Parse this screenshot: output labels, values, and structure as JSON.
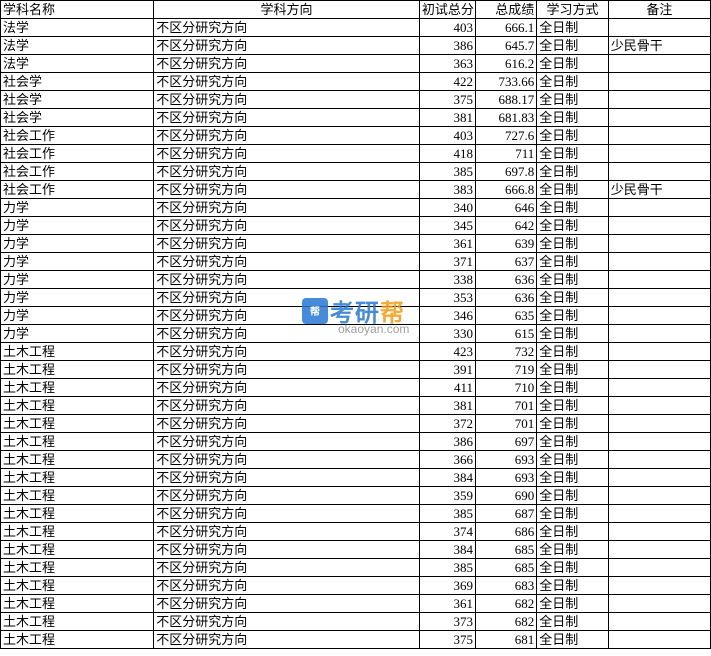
{
  "headers": {
    "subject": "学科名称",
    "direction": "学科方向",
    "score1": "初试总分",
    "score2": "总成绩",
    "mode": "学习方式",
    "remark": "备注"
  },
  "rows": [
    {
      "subject": "法学",
      "direction": "不区分研究方向",
      "score1": "403",
      "score2": "666.1",
      "mode": "全日制",
      "remark": ""
    },
    {
      "subject": "法学",
      "direction": "不区分研究方向",
      "score1": "386",
      "score2": "645.7",
      "mode": "全日制",
      "remark": "少民骨干"
    },
    {
      "subject": "法学",
      "direction": "不区分研究方向",
      "score1": "363",
      "score2": "616.2",
      "mode": "全日制",
      "remark": ""
    },
    {
      "subject": "社会学",
      "direction": "不区分研究方向",
      "score1": "422",
      "score2": "733.66",
      "mode": "全日制",
      "remark": ""
    },
    {
      "subject": "社会学",
      "direction": "不区分研究方向",
      "score1": "375",
      "score2": "688.17",
      "mode": "全日制",
      "remark": ""
    },
    {
      "subject": "社会学",
      "direction": "不区分研究方向",
      "score1": "381",
      "score2": "681.83",
      "mode": "全日制",
      "remark": ""
    },
    {
      "subject": "社会工作",
      "direction": "不区分研究方向",
      "score1": "403",
      "score2": "727.6",
      "mode": "全日制",
      "remark": ""
    },
    {
      "subject": "社会工作",
      "direction": "不区分研究方向",
      "score1": "418",
      "score2": "711",
      "mode": "全日制",
      "remark": ""
    },
    {
      "subject": "社会工作",
      "direction": "不区分研究方向",
      "score1": "385",
      "score2": "697.8",
      "mode": "全日制",
      "remark": ""
    },
    {
      "subject": "社会工作",
      "direction": "不区分研究方向",
      "score1": "383",
      "score2": "666.8",
      "mode": "全日制",
      "remark": "少民骨干"
    },
    {
      "subject": "力学",
      "direction": "不区分研究方向",
      "score1": "340",
      "score2": "646",
      "mode": "全日制",
      "remark": ""
    },
    {
      "subject": "力学",
      "direction": "不区分研究方向",
      "score1": "345",
      "score2": "642",
      "mode": "全日制",
      "remark": ""
    },
    {
      "subject": "力学",
      "direction": "不区分研究方向",
      "score1": "361",
      "score2": "639",
      "mode": "全日制",
      "remark": ""
    },
    {
      "subject": "力学",
      "direction": "不区分研究方向",
      "score1": "371",
      "score2": "637",
      "mode": "全日制",
      "remark": ""
    },
    {
      "subject": "力学",
      "direction": "不区分研究方向",
      "score1": "338",
      "score2": "636",
      "mode": "全日制",
      "remark": ""
    },
    {
      "subject": "力学",
      "direction": "不区分研究方向",
      "score1": "353",
      "score2": "636",
      "mode": "全日制",
      "remark": ""
    },
    {
      "subject": "力学",
      "direction": "不区分研究方向",
      "score1": "346",
      "score2": "635",
      "mode": "全日制",
      "remark": ""
    },
    {
      "subject": "力学",
      "direction": "不区分研究方向",
      "score1": "330",
      "score2": "615",
      "mode": "全日制",
      "remark": ""
    },
    {
      "subject": "土木工程",
      "direction": "不区分研究方向",
      "score1": "423",
      "score2": "732",
      "mode": "全日制",
      "remark": ""
    },
    {
      "subject": "土木工程",
      "direction": "不区分研究方向",
      "score1": "391",
      "score2": "719",
      "mode": "全日制",
      "remark": ""
    },
    {
      "subject": "土木工程",
      "direction": "不区分研究方向",
      "score1": "411",
      "score2": "710",
      "mode": "全日制",
      "remark": ""
    },
    {
      "subject": "土木工程",
      "direction": "不区分研究方向",
      "score1": "381",
      "score2": "701",
      "mode": "全日制",
      "remark": ""
    },
    {
      "subject": "土木工程",
      "direction": "不区分研究方向",
      "score1": "372",
      "score2": "701",
      "mode": "全日制",
      "remark": ""
    },
    {
      "subject": "土木工程",
      "direction": "不区分研究方向",
      "score1": "386",
      "score2": "697",
      "mode": "全日制",
      "remark": ""
    },
    {
      "subject": "土木工程",
      "direction": "不区分研究方向",
      "score1": "366",
      "score2": "693",
      "mode": "全日制",
      "remark": ""
    },
    {
      "subject": "土木工程",
      "direction": "不区分研究方向",
      "score1": "384",
      "score2": "693",
      "mode": "全日制",
      "remark": ""
    },
    {
      "subject": "土木工程",
      "direction": "不区分研究方向",
      "score1": "359",
      "score2": "690",
      "mode": "全日制",
      "remark": ""
    },
    {
      "subject": "土木工程",
      "direction": "不区分研究方向",
      "score1": "385",
      "score2": "687",
      "mode": "全日制",
      "remark": ""
    },
    {
      "subject": "土木工程",
      "direction": "不区分研究方向",
      "score1": "374",
      "score2": "686",
      "mode": "全日制",
      "remark": ""
    },
    {
      "subject": "土木工程",
      "direction": "不区分研究方向",
      "score1": "384",
      "score2": "685",
      "mode": "全日制",
      "remark": ""
    },
    {
      "subject": "土木工程",
      "direction": "不区分研究方向",
      "score1": "385",
      "score2": "685",
      "mode": "全日制",
      "remark": ""
    },
    {
      "subject": "土木工程",
      "direction": "不区分研究方向",
      "score1": "369",
      "score2": "683",
      "mode": "全日制",
      "remark": ""
    },
    {
      "subject": "土木工程",
      "direction": "不区分研究方向",
      "score1": "361",
      "score2": "682",
      "mode": "全日制",
      "remark": ""
    },
    {
      "subject": "土木工程",
      "direction": "不区分研究方向",
      "score1": "373",
      "score2": "682",
      "mode": "全日制",
      "remark": ""
    },
    {
      "subject": "土木工程",
      "direction": "不区分研究方向",
      "score1": "375",
      "score2": "681",
      "mode": "全日制",
      "remark": ""
    }
  ],
  "watermark": {
    "brand_part1": "考研",
    "brand_part2": "帮",
    "url": "okaoyan.com",
    "badge_text": "帮"
  }
}
